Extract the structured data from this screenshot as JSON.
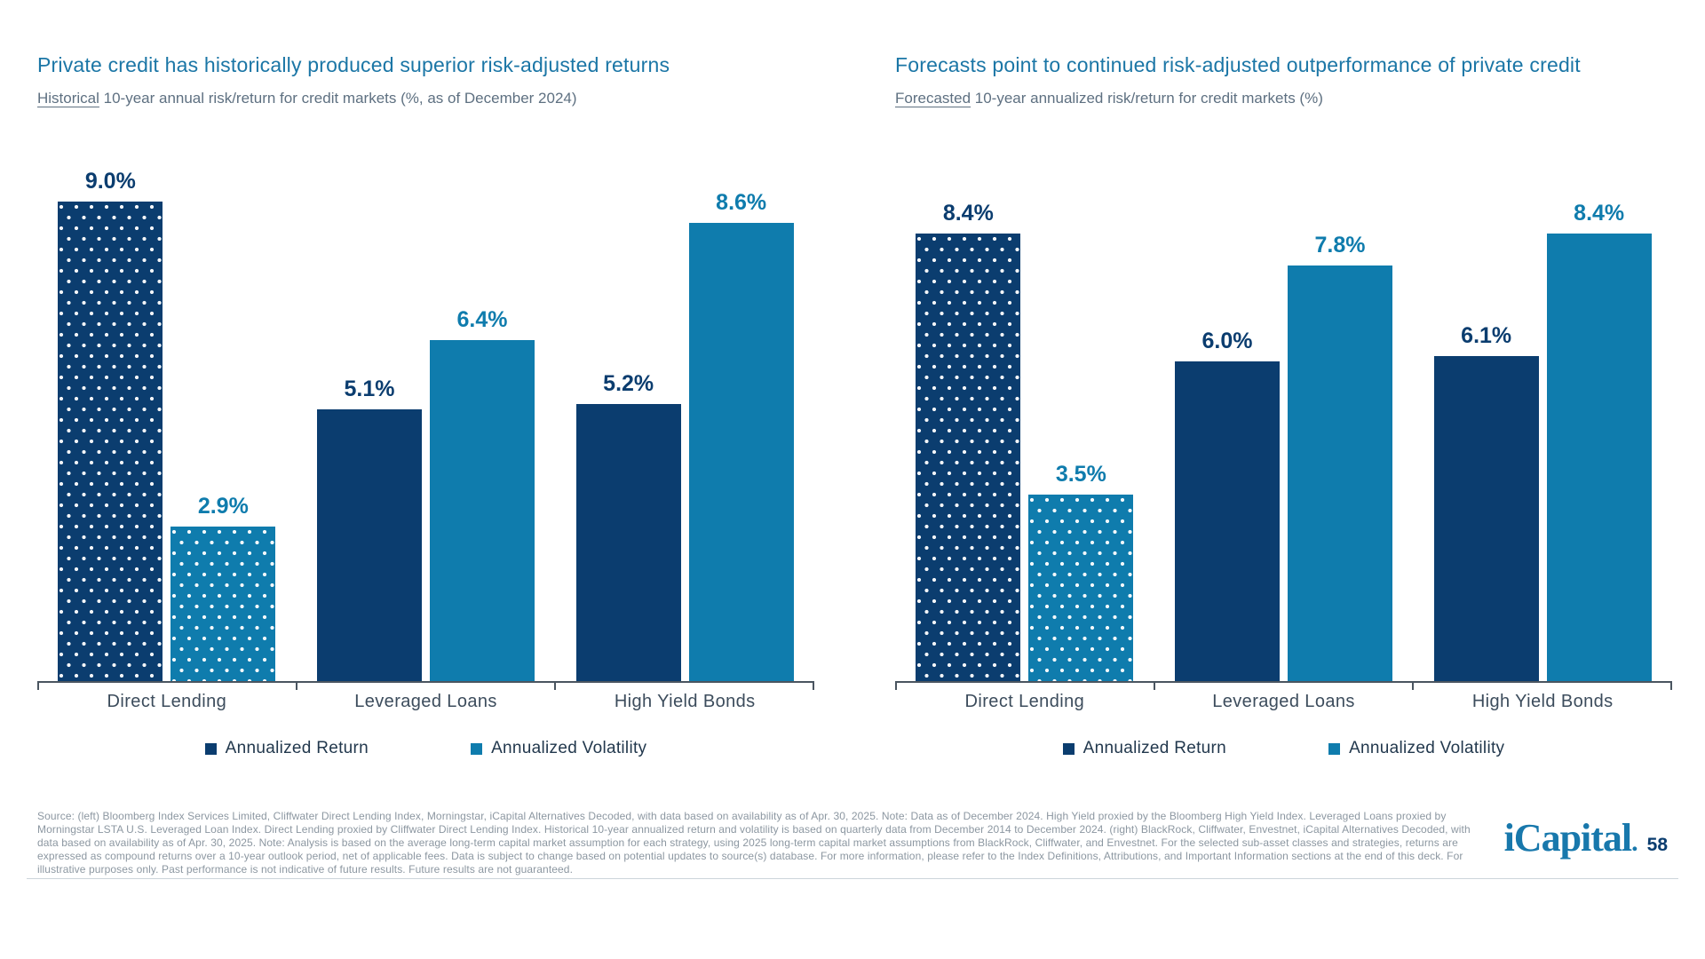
{
  "colors": {
    "dark_navy": "#0B3D6F",
    "light_blue": "#0F7CAD",
    "title_blue": "#1B76A6",
    "subtitle_gray": "#5E7081",
    "category_gray": "#3C4C5C",
    "legend_text": "#22384D",
    "axis_gray": "#4A5560",
    "footer_gray": "#8C97A1",
    "brand_blue": "#1878AC",
    "divider_gray": "#CCD5DA",
    "background": "#FFFFFF"
  },
  "chart_data": [
    {
      "type": "bar",
      "title": "Private credit has historically produced superior risk-adjusted returns",
      "subtitle_lead": "Historical",
      "subtitle_rest": " 10-year annual risk/return for credit markets (%, as of December 2024)",
      "categories": [
        "Direct Lending",
        "Leveraged Loans",
        "High Yield Bonds"
      ],
      "series": [
        {
          "name": "Annualized Return",
          "color_role": "dark",
          "values": [
            9.0,
            5.1,
            5.2
          ],
          "labels": [
            "9.0%",
            "5.1%",
            "5.2%"
          ]
        },
        {
          "name": "Annualized Volatility",
          "color_role": "light",
          "values": [
            2.9,
            6.4,
            8.6
          ],
          "labels": [
            "2.9%",
            "6.4%",
            "8.6%"
          ]
        }
      ],
      "patterned_category": "Direct Lending",
      "legend": [
        "Annualized Return",
        "Annualized Volatility"
      ],
      "legend_position": "bottom",
      "grid": false,
      "ylim": [
        0,
        9.5
      ],
      "xlabel": "",
      "ylabel": ""
    },
    {
      "type": "bar",
      "title": "Forecasts point to continued risk-adjusted outperformance of private credit",
      "subtitle_lead": "Forecasted",
      "subtitle_rest": " 10-year annualized risk/return for credit markets (%)",
      "categories": [
        "Direct Lending",
        "Leveraged Loans",
        "High Yield Bonds"
      ],
      "series": [
        {
          "name": "Annualized Return",
          "color_role": "dark",
          "values": [
            8.4,
            6.0,
            6.1
          ],
          "labels": [
            "8.4%",
            "6.0%",
            "6.1%"
          ]
        },
        {
          "name": "Annualized Volatility",
          "color_role": "light",
          "values": [
            3.5,
            7.8,
            8.4
          ],
          "labels": [
            "3.5%",
            "7.8%",
            "8.4%"
          ]
        }
      ],
      "patterned_category": "Direct Lending",
      "legend": [
        "Annualized Return",
        "Annualized Volatility"
      ],
      "legend_position": "bottom",
      "grid": false,
      "ylim": [
        0,
        9.5
      ],
      "xlabel": "",
      "ylabel": ""
    }
  ],
  "footer": {
    "source": "Source: (left) Bloomberg Index Services Limited, Cliffwater Direct Lending Index, Morningstar, iCapital Alternatives Decoded, with data based on availability as of Apr. 30, 2025. Note: Data as of December 2024. High Yield proxied by the Bloomberg High Yield Index. Leveraged Loans proxied by Morningstar LSTA U.S. Leveraged Loan Index. Direct Lending proxied by Cliffwater Direct Lending Index. Historical 10-year annualized return and volatility is based on quarterly data from December 2014 to December 2024. (right) BlackRock, Cliffwater, Envestnet, iCapital Alternatives Decoded, with data based on availability as of Apr. 30, 2025. Note: Analysis is based on the average long-term capital market assumption for each strategy, using 2025 long-term capital market assumptions from BlackRock, Cliffwater, and Envestnet. For the selected sub-asset classes and strategies, returns are expressed as compound returns over a 10-year outlook period, net of applicable fees. Data is subject to change based on potential updates to source(s) database. For more information, please refer to the Index Definitions, Attributions, and Important Information sections at the end of this deck. For illustrative purposes only. Past performance is not indicative of future results. Future results are not guaranteed.",
    "brand": "iCapital",
    "brand_dot": ".",
    "page_number": "58"
  }
}
